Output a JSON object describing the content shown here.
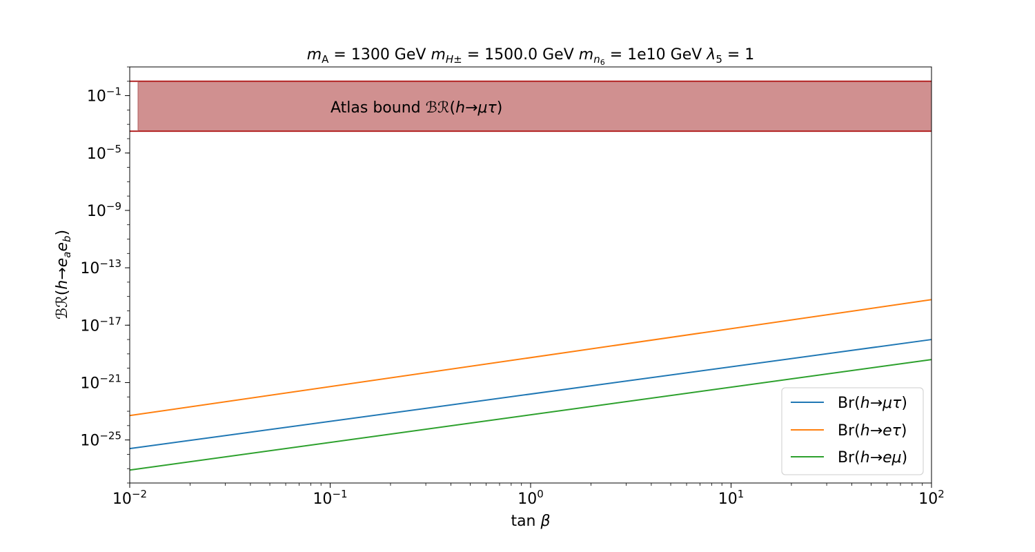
{
  "chart_data": {
    "type": "line",
    "title": "m_A = 1300 GeV m_H± = 1500.0 GeV m_n6 = 1e10 GeV λ5 = 1",
    "xlabel": "tan β",
    "ylabel": "BR(h→e_a e_b)",
    "x_scale": "log",
    "y_scale": "log",
    "xlim": [
      0.01,
      100
    ],
    "ylim": [
      1e-28,
      10.0
    ],
    "x_ticks": [
      {
        "value": 0.01,
        "base": "10",
        "exp": "−2"
      },
      {
        "value": 0.1,
        "base": "10",
        "exp": "−1"
      },
      {
        "value": 1,
        "base": "10",
        "exp": "0"
      },
      {
        "value": 10,
        "base": "10",
        "exp": "1"
      },
      {
        "value": 100,
        "base": "10",
        "exp": "2"
      }
    ],
    "y_ticks": [
      {
        "value": 0.1,
        "base": "10",
        "exp": "−1"
      },
      {
        "value": 1e-05,
        "base": "10",
        "exp": "−5"
      },
      {
        "value": 1e-09,
        "base": "10",
        "exp": "−9"
      },
      {
        "value": 1e-13,
        "base": "10",
        "exp": "−13"
      },
      {
        "value": 1e-17,
        "base": "10",
        "exp": "−17"
      },
      {
        "value": 1e-21,
        "base": "10",
        "exp": "−21"
      },
      {
        "value": 1e-25,
        "base": "10",
        "exp": "−25"
      }
    ],
    "band": {
      "label": "Atlas bound BR(h→μτ)",
      "x_range": [
        0.011,
        100
      ],
      "y_range": [
        0.00033,
        1.0
      ],
      "fill": "#d09090",
      "edge": "#b22222"
    },
    "series": [
      {
        "name": "Br(h→μτ)",
        "color": "#1f77b4",
        "x": [
          0.01,
          100
        ],
        "y": [
          2.5e-26,
          1e-18
        ]
      },
      {
        "name": "Br(h→eτ)",
        "color": "#ff7f0e",
        "x": [
          0.01,
          100
        ],
        "y": [
          5e-24,
          6e-16
        ]
      },
      {
        "name": "Br(h→eμ)",
        "color": "#2ca02c",
        "x": [
          0.01,
          100
        ],
        "y": [
          8e-28,
          4e-20
        ]
      }
    ],
    "legend": "lower-right",
    "grid": false
  }
}
